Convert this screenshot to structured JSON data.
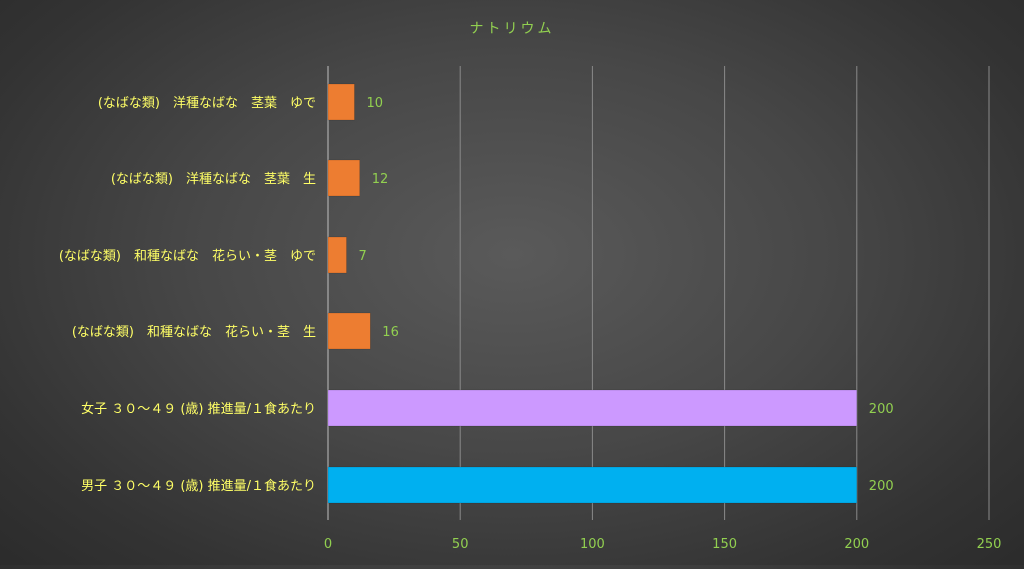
{
  "chart_data": {
    "type": "bar",
    "orientation": "horizontal",
    "title": "ナトリウム",
    "categories": [
      "(なばな類)　洋種なばな　茎葉　ゆで",
      "(なばな類)　洋種なばな　茎葉　生",
      "(なばな類)　和種なばな　花らい・茎　ゆで",
      "(なばな類)　和種なばな　花らい・茎　生",
      "女子 ３０～４９ (歳) 推進量/１食あたり",
      "男子 ３０～４９ (歳) 推進量/１食あたり"
    ],
    "values": [
      10,
      12,
      7,
      16,
      200,
      200
    ],
    "data_labels": [
      "10",
      "12",
      "7",
      "16",
      "200",
      "200"
    ],
    "bar_colors": [
      "#ed7d31",
      "#ed7d31",
      "#ed7d31",
      "#ed7d31",
      "#cc99ff",
      "#00b0f0"
    ],
    "xlim": [
      0,
      250
    ],
    "x_ticks": [
      0,
      50,
      100,
      150,
      200,
      250
    ],
    "x_tick_labels": [
      "0",
      "50",
      "100",
      "150",
      "200",
      "250"
    ],
    "grid": true,
    "legend": "none",
    "colors": {
      "title": "#92d050",
      "category_label": "#ffff66",
      "data_label": "#92d050",
      "tick_label": "#92d050",
      "gridline": "#8a8a8a"
    }
  }
}
